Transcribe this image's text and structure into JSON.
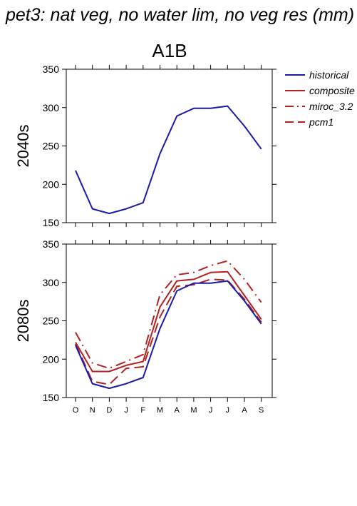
{
  "page_title": "pet3: nat veg, no water lim, no veg res (mm)",
  "scenario": "A1B",
  "chart_data": [
    {
      "type": "line",
      "panel_label": "2040s",
      "categories": [
        "O",
        "N",
        "D",
        "J",
        "F",
        "M",
        "A",
        "M",
        "J",
        "J",
        "A",
        "S"
      ],
      "ylim": [
        150,
        350
      ],
      "yticks": [
        150,
        200,
        250,
        300,
        350
      ],
      "grid": false,
      "legend": "outside-right",
      "show_xtick_labels": false,
      "series": [
        {
          "name": "historical",
          "color": "#1a1aaa",
          "dash": "solid",
          "values": [
            218,
            168,
            162,
            168,
            176,
            240,
            289,
            299,
            299,
            302,
            276,
            246
          ]
        }
      ]
    },
    {
      "type": "line",
      "panel_label": "2080s",
      "categories": [
        "O",
        "N",
        "D",
        "J",
        "F",
        "M",
        "A",
        "M",
        "J",
        "J",
        "A",
        "S"
      ],
      "ylim": [
        150,
        350
      ],
      "yticks": [
        150,
        200,
        250,
        300,
        350
      ],
      "grid": false,
      "legend": "outside-right",
      "show_xtick_labels": true,
      "series": [
        {
          "name": "historical",
          "color": "#1a1aaa",
          "dash": "solid",
          "values": [
            218,
            168,
            162,
            168,
            176,
            240,
            289,
            299,
            299,
            302,
            276,
            246
          ]
        },
        {
          "name": "composite",
          "color": "#b22222",
          "dash": "solid",
          "values": [
            222,
            184,
            184,
            192,
            197,
            268,
            302,
            304,
            313,
            314,
            283,
            252
          ]
        },
        {
          "name": "miroc_3.2",
          "color": "#b22222",
          "dash": "dashdot",
          "values": [
            235,
            195,
            188,
            197,
            206,
            284,
            310,
            313,
            322,
            328,
            304,
            274
          ]
        },
        {
          "name": "pcm1",
          "color": "#b22222",
          "dash": "dashed",
          "values": [
            220,
            171,
            167,
            188,
            190,
            255,
            295,
            297,
            304,
            303,
            278,
            248
          ]
        }
      ]
    }
  ]
}
